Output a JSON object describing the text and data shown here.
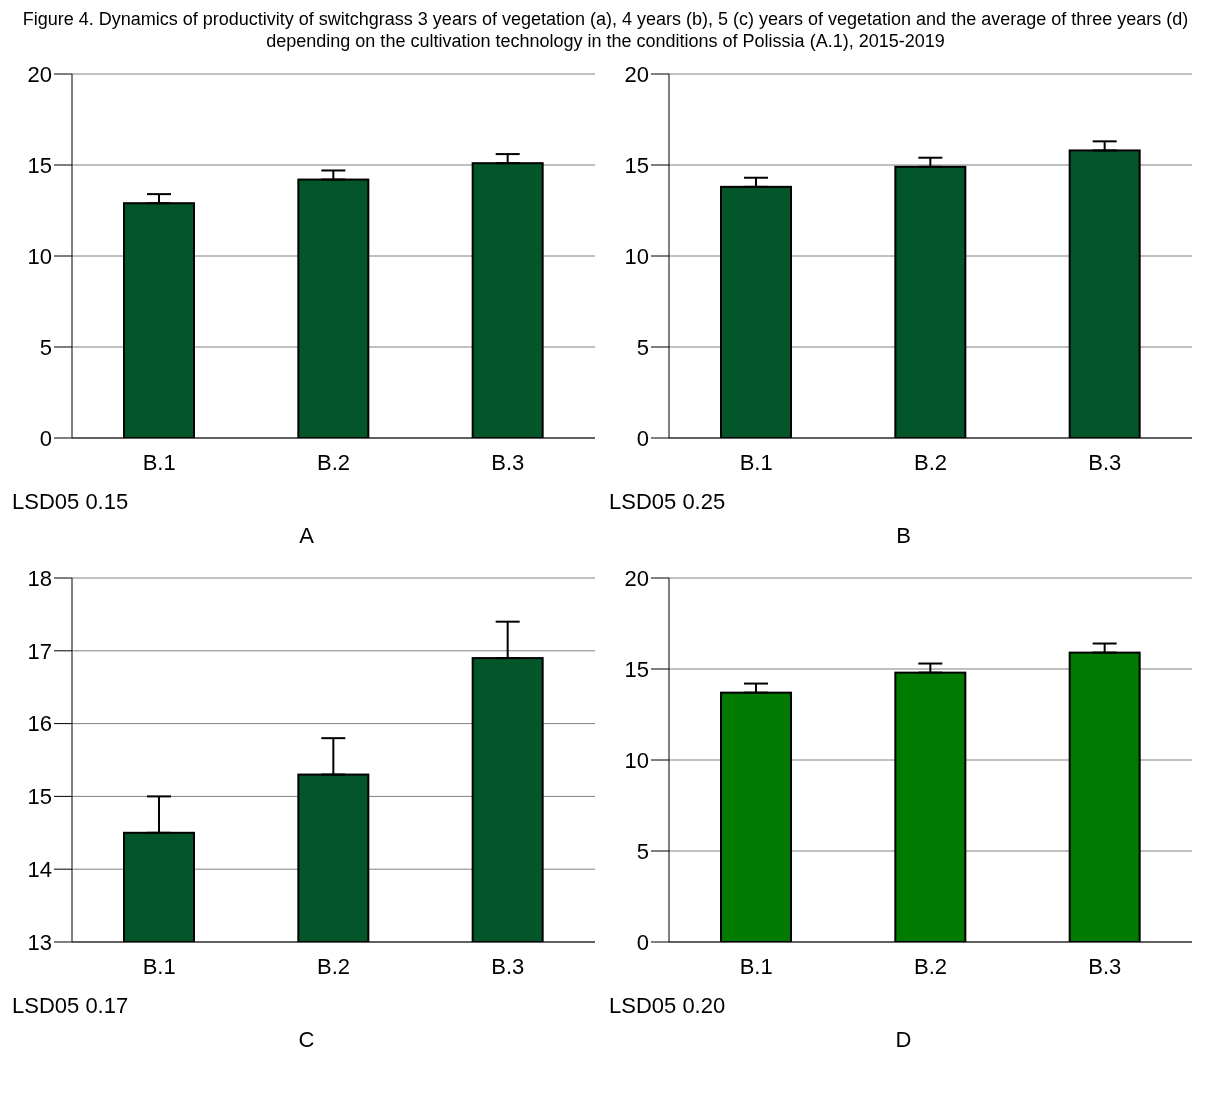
{
  "chart_data": [
    {
      "type": "bar",
      "title": "Figure 4. Dynamics of productivity of switchgrass 3 years of vegetation (a), 4 years (b), 5 (c) years of vegetation and the average of three years (d) depending on the cultivation technology in the conditions of Polissia (A.1), 2015-2019",
      "categories": [
        "B.1",
        "B.2",
        "B.3"
      ],
      "values": [
        12.9,
        14.2,
        15.1
      ],
      "errors": [
        [
          12.9,
          13.4
        ],
        [
          14.2,
          14.7
        ],
        [
          15.1,
          15.6
        ]
      ],
      "color": "#03562a",
      "ylim": [
        0,
        20
      ],
      "yticks": [
        0,
        5,
        10,
        15,
        20
      ],
      "grid": "y",
      "annotations": [
        "LSD05 0.15",
        "A"
      ]
    },
    {
      "type": "bar",
      "categories": [
        "B.1",
        "B.2",
        "B.3"
      ],
      "values": [
        13.8,
        14.9,
        15.8
      ],
      "errors": [
        [
          13.8,
          14.3
        ],
        [
          14.9,
          15.4
        ],
        [
          15.8,
          16.3
        ]
      ],
      "color": "#03562a",
      "ylim": [
        0,
        20
      ],
      "yticks": [
        0,
        5,
        10,
        15,
        20
      ],
      "grid": "y",
      "annotations": [
        "LSD05 0.25",
        "B"
      ]
    },
    {
      "type": "bar",
      "categories": [
        "B.1",
        "B.2",
        "B.3"
      ],
      "values": [
        14.5,
        15.3,
        16.9
      ],
      "errors": [
        [
          14.5,
          15.0
        ],
        [
          15.3,
          15.8
        ],
        [
          16.9,
          17.4
        ]
      ],
      "color": "#03562a",
      "ylim": [
        13,
        18
      ],
      "yticks": [
        13,
        14,
        15,
        16,
        17,
        18
      ],
      "grid": "y",
      "annotations": [
        "LSD05 0.17",
        "C"
      ]
    },
    {
      "type": "bar",
      "categories": [
        "B.1",
        "B.2",
        "B.3"
      ],
      "values": [
        13.7,
        14.8,
        15.9
      ],
      "errors": [
        [
          13.7,
          14.2
        ],
        [
          14.8,
          15.3
        ],
        [
          15.9,
          16.4
        ]
      ],
      "color": "#007a00",
      "ylim": [
        0,
        20
      ],
      "yticks": [
        0,
        5,
        10,
        15,
        20
      ],
      "grid": "y",
      "annotations": [
        "LSD05 0.20",
        "D"
      ]
    }
  ]
}
